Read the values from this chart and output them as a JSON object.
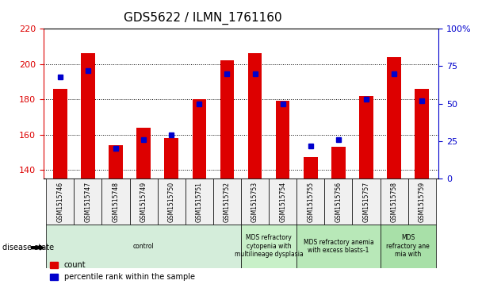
{
  "title": "GDS5622 / ILMN_1761160",
  "samples": [
    "GSM1515746",
    "GSM1515747",
    "GSM1515748",
    "GSM1515749",
    "GSM1515750",
    "GSM1515751",
    "GSM1515752",
    "GSM1515753",
    "GSM1515754",
    "GSM1515755",
    "GSM1515756",
    "GSM1515757",
    "GSM1515758",
    "GSM1515759"
  ],
  "counts": [
    186,
    206,
    154,
    164,
    158,
    180,
    202,
    206,
    179,
    147,
    153,
    182,
    204,
    186
  ],
  "percentile_ranks": [
    68,
    72,
    20,
    26,
    29,
    50,
    70,
    70,
    50,
    22,
    26,
    53,
    70,
    52
  ],
  "ylim_left": [
    135,
    220
  ],
  "ylim_right": [
    0,
    100
  ],
  "yticks_left": [
    140,
    160,
    180,
    200,
    220
  ],
  "yticks_right": [
    0,
    25,
    50,
    75,
    100
  ],
  "bar_color": "#dd0000",
  "dot_color": "#0000cc",
  "background_color": "#f0f0f0",
  "disease_groups": [
    {
      "label": "control",
      "start": 0,
      "end": 7,
      "color": "#d4edda"
    },
    {
      "label": "MDS refractory\ncytopenia with\nmultilineage dysplasia",
      "start": 7,
      "end": 9,
      "color": "#c8f0c8"
    },
    {
      "label": "MDS refractory anemia\nwith excess blasts-1",
      "start": 9,
      "end": 12,
      "color": "#b8e8b8"
    },
    {
      "label": "MDS\nrefractory ane\nmia with",
      "start": 12,
      "end": 14,
      "color": "#a8e0a8"
    }
  ],
  "legend_count_label": "count",
  "legend_percentile_label": "percentile rank within the sample",
  "disease_state_label": "disease state"
}
